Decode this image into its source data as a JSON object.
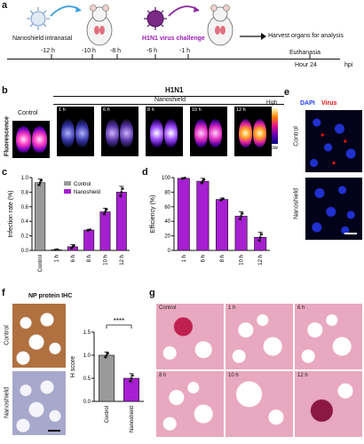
{
  "panels": {
    "a": "a",
    "b": "b",
    "c": "c",
    "d": "d",
    "e": "e",
    "f": "f",
    "g": "g"
  },
  "timeline": {
    "step1": "Nanoshield intranasal",
    "step2": "H1N1 virus challenge",
    "step3": "Harvest organs for analysis",
    "ticks": [
      "-12 h",
      "-10 h",
      "-8 h",
      "-6 h",
      "-1 h"
    ],
    "euthanasia": "Euthanasia",
    "hour24": "Hour 24",
    "unit": "hpi"
  },
  "fluor": {
    "title": "H1N1",
    "side_label": "Fluorescence",
    "control": "Control",
    "group": "Nanoshield",
    "tiles": [
      "1 h",
      "6 h",
      "8 h",
      "10 h",
      "12 h"
    ],
    "scale_high": "High",
    "scale_low": "Low"
  },
  "if_panel": {
    "dapi": "DAPI",
    "virus": "Virus",
    "control": "Control",
    "nanoshield": "Nanoshield"
  },
  "ihc": {
    "title": "NP protein IHC",
    "control": "Control",
    "nanoshield": "Nanoshield"
  },
  "he": {
    "tiles": [
      "Control",
      "1 h",
      "6 h",
      "8 h",
      "10 h",
      "12 h"
    ]
  },
  "colors": {
    "control": "#9a9a9a",
    "nanoshield": "#a61fd0",
    "accent": "#3aa0d8"
  },
  "chart_data": [
    {
      "type": "bar",
      "ylabel": "Infection rate (%)",
      "categories": [
        "Control",
        "1 h",
        "6 h",
        "8 h",
        "10 h",
        "12 h"
      ],
      "values": [
        0.93,
        0.01,
        0.05,
        0.28,
        0.53,
        0.8
      ],
      "errors": [
        0.05,
        0.005,
        0.03,
        0.01,
        0.05,
        0.08
      ],
      "ylim": [
        0,
        1.0
      ],
      "yticks": [
        "0.0",
        "0.2",
        "0.4",
        "0.6",
        "0.8",
        "1.0"
      ],
      "legend": [
        "Control",
        "Nanoshield"
      ]
    },
    {
      "type": "bar",
      "ylabel": "Efficiency (%)",
      "categories": [
        "1 h",
        "6 h",
        "8 h",
        "10 h",
        "12 h"
      ],
      "values": [
        99,
        95,
        70,
        47,
        18
      ],
      "errors": [
        1,
        4,
        2,
        6,
        7
      ],
      "ylim": [
        0,
        100
      ],
      "yticks": [
        "0",
        "20",
        "40",
        "60",
        "80",
        "100"
      ]
    },
    {
      "type": "bar",
      "ylabel": "H score",
      "categories": [
        "Control",
        "Nanoshield"
      ],
      "values": [
        1.0,
        0.5
      ],
      "errors": [
        0.07,
        0.1
      ],
      "ylim": [
        0,
        1.5
      ],
      "yticks": [
        "0.0",
        "0.5",
        "1.0",
        "1.5"
      ],
      "significance": "****"
    }
  ]
}
